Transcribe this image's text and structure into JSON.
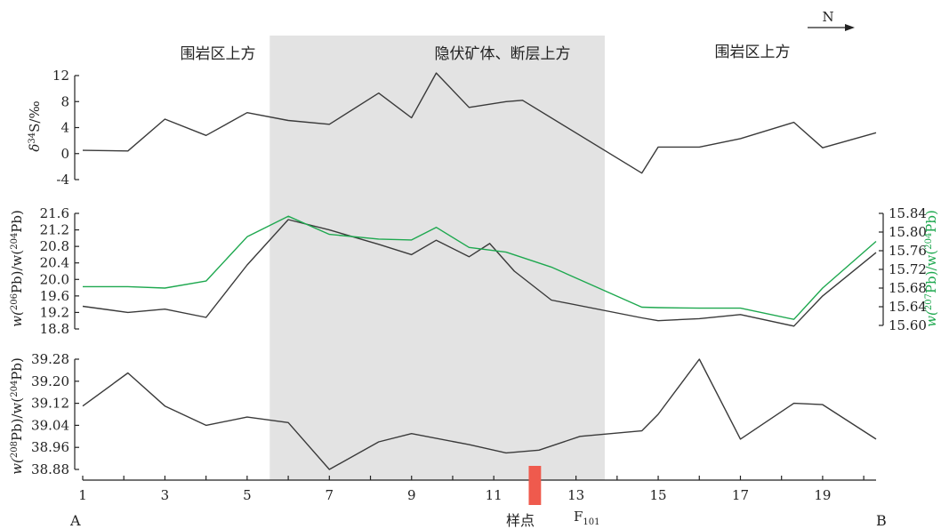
{
  "figure": {
    "north_label": "N",
    "end_left": "A",
    "end_right": "B",
    "fault_label": "F",
    "fault_sub": "101",
    "fault_color": "#ef5a4d",
    "shade_color": "#e3e3e3",
    "region_labels": [
      "围岩区上方",
      "隐伏矿体、断层上方",
      "围岩区上方"
    ]
  },
  "chart_data": [
    {
      "type": "line",
      "panel": "top",
      "ylabel_parts": [
        "δ",
        "34",
        "S/‰"
      ],
      "ylim": [
        -4,
        12
      ],
      "yticks": [
        12,
        8,
        4,
        0,
        -4
      ],
      "xlim": [
        1,
        20.3
      ],
      "shaded_x": [
        5.55,
        13.7
      ],
      "fault_x": [
        11.85,
        12.15
      ],
      "series": [
        {
          "color": "#3a3a3a",
          "points": [
            [
              1,
              0.5
            ],
            [
              2.1,
              0.4
            ],
            [
              3,
              5.3
            ],
            [
              4,
              2.8
            ],
            [
              5,
              6.3
            ],
            [
              6,
              5.1
            ],
            [
              7,
              4.5
            ],
            [
              8.2,
              9.3
            ],
            [
              9,
              5.5
            ],
            [
              9.6,
              12.4
            ],
            [
              10.4,
              7.1
            ],
            [
              11.3,
              8.0
            ],
            [
              11.7,
              8.2
            ],
            [
              14.6,
              -3.0
            ],
            [
              15,
              1.0
            ],
            [
              16,
              1.0
            ],
            [
              17,
              2.3
            ],
            [
              18.3,
              4.8
            ],
            [
              19,
              0.9
            ],
            [
              20.3,
              3.2
            ]
          ]
        }
      ]
    },
    {
      "type": "line",
      "panel": "middle",
      "ylabel_left_parts": [
        "w(",
        "206",
        "Pb)/w(",
        "204",
        "Pb)"
      ],
      "ylabel_right_parts": [
        "w(",
        "207",
        "Pb)/w(",
        "204",
        "Pb)"
      ],
      "ylim_left": [
        18.8,
        21.6
      ],
      "yticks_left": [
        21.6,
        21.2,
        20.8,
        20.4,
        20.0,
        19.6,
        19.2,
        18.8
      ],
      "ylim_right": [
        15.6,
        15.84
      ],
      "yticks_right": [
        15.84,
        15.8,
        15.76,
        15.72,
        15.68,
        15.64,
        15.6
      ],
      "xlim": [
        1,
        20.3
      ],
      "series": [
        {
          "axis": "left",
          "color": "#3a3a3a",
          "points": [
            [
              1,
              19.35
            ],
            [
              2.1,
              19.2
            ],
            [
              3,
              19.28
            ],
            [
              4,
              19.08
            ],
            [
              5,
              20.35
            ],
            [
              6,
              21.45
            ],
            [
              7,
              21.2
            ],
            [
              8.2,
              20.85
            ],
            [
              9,
              20.6
            ],
            [
              9.6,
              20.95
            ],
            [
              10.4,
              20.55
            ],
            [
              10.9,
              20.87
            ],
            [
              11.5,
              20.2
            ],
            [
              12.4,
              19.5
            ],
            [
              14.6,
              19.07
            ],
            [
              15,
              19.0
            ],
            [
              16,
              19.05
            ],
            [
              17,
              19.15
            ],
            [
              18.3,
              18.87
            ],
            [
              19,
              19.6
            ],
            [
              20.3,
              20.65
            ]
          ]
        },
        {
          "axis": "right",
          "color": "#1ea84f",
          "points": [
            [
              1,
              15.683
            ],
            [
              2.1,
              15.683
            ],
            [
              3,
              15.68
            ],
            [
              4,
              15.695
            ],
            [
              5,
              15.79
            ],
            [
              6,
              15.834
            ],
            [
              7,
              15.795
            ],
            [
              8.2,
              15.785
            ],
            [
              9,
              15.783
            ],
            [
              9.6,
              15.81
            ],
            [
              10.4,
              15.767
            ],
            [
              11.3,
              15.757
            ],
            [
              12.4,
              15.725
            ],
            [
              14.6,
              15.639
            ],
            [
              15,
              15.638
            ],
            [
              16,
              15.637
            ],
            [
              17,
              15.637
            ],
            [
              18.3,
              15.613
            ],
            [
              19,
              15.68
            ],
            [
              20.3,
              15.78
            ]
          ]
        }
      ]
    },
    {
      "type": "line",
      "panel": "bottom",
      "ylabel_parts": [
        "w(",
        "208",
        "Pb)/w(",
        "204",
        "Pb)"
      ],
      "ylim": [
        38.88,
        39.28
      ],
      "yticks": [
        39.28,
        39.2,
        39.12,
        39.04,
        38.96,
        38.88
      ],
      "xlim": [
        1,
        20.3
      ],
      "xticks": [
        1,
        3,
        5,
        7,
        9,
        11,
        13,
        15,
        17,
        19
      ],
      "xlabel": "样点",
      "series": [
        {
          "color": "#3a3a3a",
          "points": [
            [
              1,
              39.11
            ],
            [
              2.1,
              39.23
            ],
            [
              3,
              39.11
            ],
            [
              4,
              39.04
            ],
            [
              5,
              39.07
            ],
            [
              6,
              39.05
            ],
            [
              7,
              38.88
            ],
            [
              8.2,
              38.98
            ],
            [
              9,
              39.01
            ],
            [
              10.4,
              38.97
            ],
            [
              11.3,
              38.94
            ],
            [
              12.1,
              38.95
            ],
            [
              13.1,
              39.0
            ],
            [
              14.6,
              39.02
            ],
            [
              15,
              39.08
            ],
            [
              16,
              39.28
            ],
            [
              17,
              38.99
            ],
            [
              18.3,
              39.12
            ],
            [
              19,
              39.115
            ],
            [
              20.3,
              38.99
            ]
          ]
        }
      ]
    }
  ]
}
